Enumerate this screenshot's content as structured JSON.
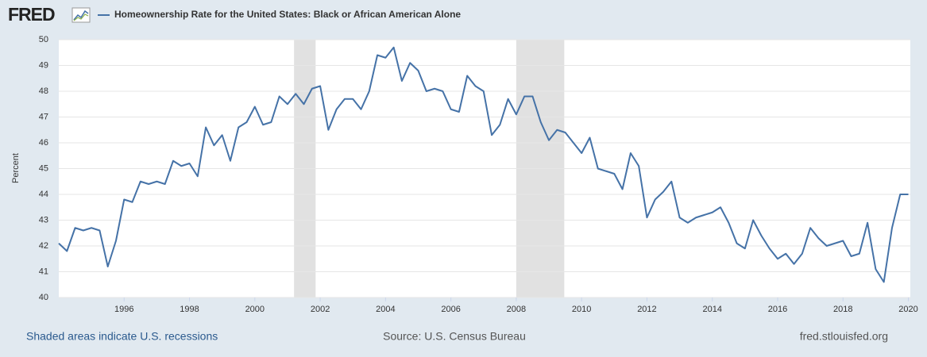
{
  "logo": "FRED",
  "chart_data": {
    "type": "line",
    "y_label": "Percent",
    "x": [
      1994,
      1994.25,
      1994.5,
      1994.75,
      1995,
      1995.25,
      1995.5,
      1995.75,
      1996,
      1996.25,
      1996.5,
      1996.75,
      1997,
      1997.25,
      1997.5,
      1997.75,
      1998,
      1998.25,
      1998.5,
      1998.75,
      1999,
      1999.25,
      1999.5,
      1999.75,
      2000,
      2000.25,
      2000.5,
      2000.75,
      2001,
      2001.25,
      2001.5,
      2001.75,
      2002,
      2002.25,
      2002.5,
      2002.75,
      2003,
      2003.25,
      2003.5,
      2003.75,
      2004,
      2004.25,
      2004.5,
      2004.75,
      2005,
      2005.25,
      2005.5,
      2005.75,
      2006,
      2006.25,
      2006.5,
      2006.75,
      2007,
      2007.25,
      2007.5,
      2007.75,
      2008,
      2008.25,
      2008.5,
      2008.75,
      2009,
      2009.25,
      2009.5,
      2009.75,
      2010,
      2010.25,
      2010.5,
      2010.75,
      2011,
      2011.25,
      2011.5,
      2011.75,
      2012,
      2012.25,
      2012.5,
      2012.75,
      2013,
      2013.25,
      2013.5,
      2013.75,
      2014,
      2014.25,
      2014.5,
      2014.75,
      2015,
      2015.25,
      2015.5,
      2015.75,
      2016,
      2016.25,
      2016.5,
      2016.75,
      2017,
      2017.25,
      2017.5,
      2017.75,
      2018,
      2018.25,
      2018.5,
      2018.75,
      2019,
      2019.25,
      2019.5,
      2019.75,
      2020
    ],
    "series": [
      {
        "name": "Homeownership Rate for the United States: Black or African American Alone",
        "color": "#4572a7",
        "values": [
          42.1,
          41.8,
          42.7,
          42.6,
          42.7,
          42.6,
          41.2,
          42.2,
          43.8,
          43.7,
          44.5,
          44.4,
          44.5,
          44.4,
          45.3,
          45.1,
          45.2,
          44.7,
          46.6,
          45.9,
          46.3,
          45.3,
          46.6,
          46.8,
          47.4,
          46.7,
          46.8,
          47.8,
          47.5,
          47.9,
          47.5,
          48.1,
          48.2,
          46.5,
          47.3,
          47.7,
          47.7,
          47.3,
          48.0,
          49.4,
          49.3,
          49.7,
          48.4,
          49.1,
          48.8,
          48.0,
          48.1,
          48.0,
          47.3,
          47.2,
          48.6,
          48.2,
          48.0,
          46.3,
          46.7,
          47.7,
          47.1,
          47.8,
          47.8,
          46.8,
          46.1,
          46.5,
          46.4,
          46.0,
          45.6,
          46.2,
          45.0,
          44.9,
          44.8,
          44.2,
          45.6,
          45.1,
          43.1,
          43.8,
          44.1,
          44.5,
          43.1,
          42.9,
          43.1,
          43.2,
          43.3,
          43.5,
          42.9,
          42.1,
          41.9,
          43.0,
          42.4,
          41.9,
          41.5,
          41.7,
          41.3,
          41.7,
          42.7,
          42.3,
          42.0,
          42.1,
          42.2,
          41.6,
          41.7,
          42.9,
          41.1,
          40.6,
          42.7,
          44.0,
          44.0
        ]
      }
    ],
    "recessions": [
      [
        2001.2,
        2001.86
      ],
      [
        2008.0,
        2009.47
      ]
    ],
    "xlim": [
      1994,
      2020.06
    ],
    "xticks": [
      1996,
      1998,
      2000,
      2002,
      2004,
      2006,
      2008,
      2010,
      2012,
      2014,
      2016,
      2018,
      2020
    ],
    "ylim": [
      40,
      50
    ],
    "yticks": [
      40,
      41,
      42,
      43,
      44,
      45,
      46,
      47,
      48,
      49,
      50
    ],
    "grid": true,
    "footnote": "Shaded areas indicate U.S. recessions",
    "source": "Source: U.S. Census Bureau",
    "site": "fred.stlouisfed.org"
  }
}
